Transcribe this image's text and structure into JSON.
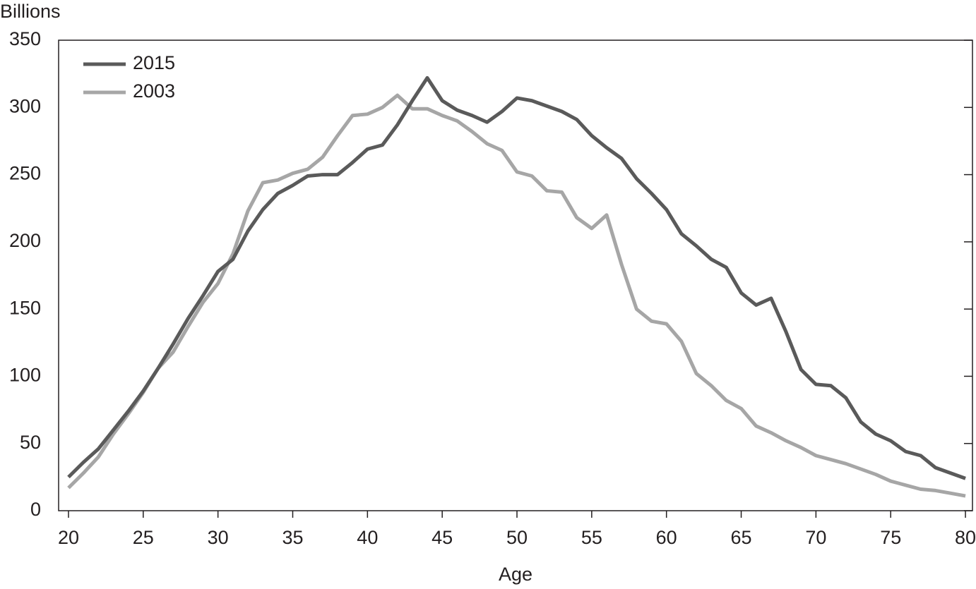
{
  "chart_data": {
    "type": "line",
    "y_unit_label": "Billions",
    "x_label": "Age",
    "x": [
      20,
      21,
      22,
      23,
      24,
      25,
      26,
      27,
      28,
      29,
      30,
      31,
      32,
      33,
      34,
      35,
      36,
      37,
      38,
      39,
      40,
      41,
      42,
      43,
      44,
      45,
      46,
      47,
      48,
      49,
      50,
      51,
      52,
      53,
      54,
      55,
      56,
      57,
      58,
      59,
      60,
      61,
      62,
      63,
      64,
      65,
      66,
      67,
      68,
      69,
      70,
      71,
      72,
      73,
      74,
      75,
      76,
      77,
      78,
      79,
      80
    ],
    "series": [
      {
        "name": "2015",
        "color": "#5a5a5a",
        "values": [
          25,
          36,
          46,
          60,
          74,
          89,
          106,
          124,
          143,
          160,
          178,
          187,
          208,
          224,
          236,
          242,
          249,
          250,
          250,
          259,
          269,
          272,
          287,
          305,
          322,
          305,
          298,
          294,
          289,
          297,
          307,
          305,
          301,
          297,
          291,
          279,
          270,
          262,
          247,
          236,
          224,
          206,
          197,
          187,
          181,
          162,
          153,
          158,
          133,
          105,
          94,
          93,
          84,
          66,
          57,
          52,
          44,
          41,
          32,
          28,
          24
        ]
      },
      {
        "name": "2003",
        "color": "#a6a6a6",
        "values": [
          17,
          28,
          40,
          57,
          72,
          88,
          106,
          118,
          137,
          155,
          169,
          191,
          223,
          244,
          246,
          251,
          254,
          263,
          279,
          294,
          295,
          300,
          309,
          299,
          299,
          294,
          290,
          282,
          273,
          268,
          252,
          249,
          238,
          237,
          218,
          210,
          220,
          183,
          150,
          141,
          139,
          126,
          102,
          93,
          82,
          76,
          63,
          58,
          52,
          47,
          41,
          38,
          35,
          31,
          27,
          22,
          19,
          16,
          15,
          13,
          11
        ]
      }
    ],
    "xlim": [
      19.34,
      80.47
    ],
    "xticks": [
      20,
      25,
      30,
      35,
      40,
      45,
      50,
      55,
      60,
      65,
      70,
      75,
      80
    ],
    "ylim": [
      0,
      350
    ],
    "yticks": [
      0,
      50,
      100,
      150,
      200,
      250,
      300,
      350
    ],
    "grid": false,
    "legend": "upper-left"
  }
}
